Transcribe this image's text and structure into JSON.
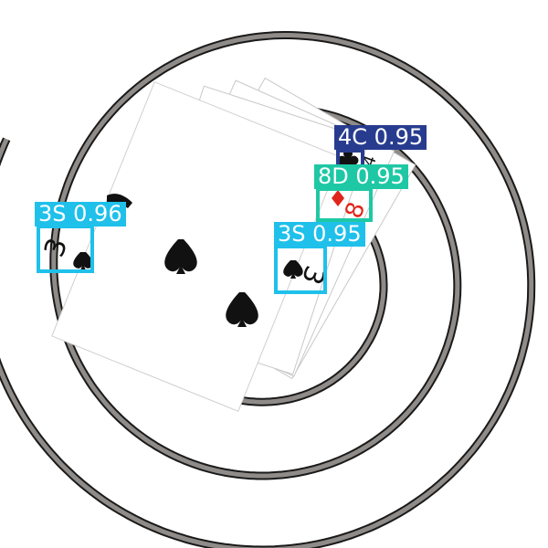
{
  "image": {
    "background": "#ffffff",
    "spiral_color": "#8f8b88",
    "spiral_outline": "#1a1a1a",
    "card_face": "#ffffff",
    "suit_black": "#111111",
    "suit_red": "#e0261c"
  },
  "detections": [
    {
      "id": "det-4c",
      "class": "4C",
      "score": "0.95",
      "color": "#283c8f"
    },
    {
      "id": "det-8d",
      "class": "8D",
      "score": "0.95",
      "color": "#1ec8a5"
    },
    {
      "id": "det-3s-left",
      "class": "3S",
      "score": "0.96",
      "color": "#1fc0ea"
    },
    {
      "id": "det-3s-right",
      "class": "3S",
      "score": "0.95",
      "color": "#1fc0ea"
    }
  ]
}
